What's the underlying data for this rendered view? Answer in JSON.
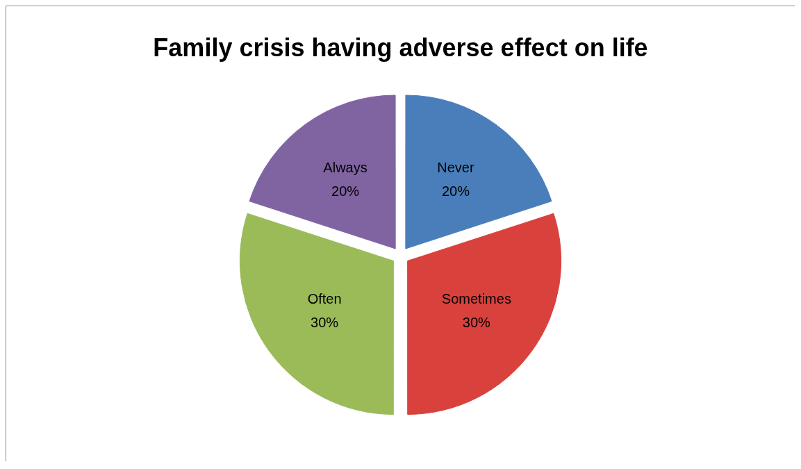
{
  "chart_data": {
    "type": "pie",
    "title": "Family crisis having adverse effect on life",
    "categories": [
      "Never",
      "Sometimes",
      "Often",
      "Always"
    ],
    "values": [
      20,
      30,
      30,
      20
    ],
    "colors": [
      "#4a7ebb",
      "#d9413d",
      "#9bbb59",
      "#8064a2"
    ],
    "value_labels": [
      "20%",
      "30%",
      "30%",
      "20%"
    ],
    "legend": false
  }
}
